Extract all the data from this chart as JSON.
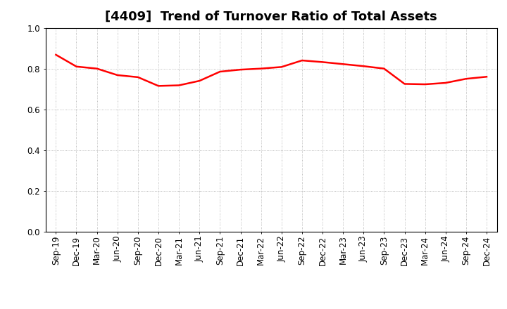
{
  "title": "[4409]  Trend of Turnover Ratio of Total Assets",
  "x_labels": [
    "Sep-19",
    "Dec-19",
    "Mar-20",
    "Jun-20",
    "Sep-20",
    "Dec-20",
    "Mar-21",
    "Jun-21",
    "Sep-21",
    "Dec-21",
    "Mar-22",
    "Jun-22",
    "Sep-22",
    "Dec-22",
    "Mar-23",
    "Jun-23",
    "Sep-23",
    "Dec-23",
    "Mar-24",
    "Jun-24",
    "Sep-24",
    "Dec-24"
  ],
  "y_values": [
    0.868,
    0.81,
    0.8,
    0.768,
    0.758,
    0.715,
    0.718,
    0.74,
    0.785,
    0.795,
    0.8,
    0.808,
    0.84,
    0.832,
    0.822,
    0.812,
    0.8,
    0.725,
    0.723,
    0.73,
    0.75,
    0.76
  ],
  "line_color": "#ff0000",
  "line_width": 1.8,
  "ylim": [
    0.0,
    1.0
  ],
  "yticks": [
    0.0,
    0.2,
    0.4,
    0.6,
    0.8,
    1.0
  ],
  "grid_color": "#aaaaaa",
  "grid_style": "dotted",
  "background_color": "#ffffff",
  "title_fontsize": 13,
  "tick_fontsize": 8.5
}
